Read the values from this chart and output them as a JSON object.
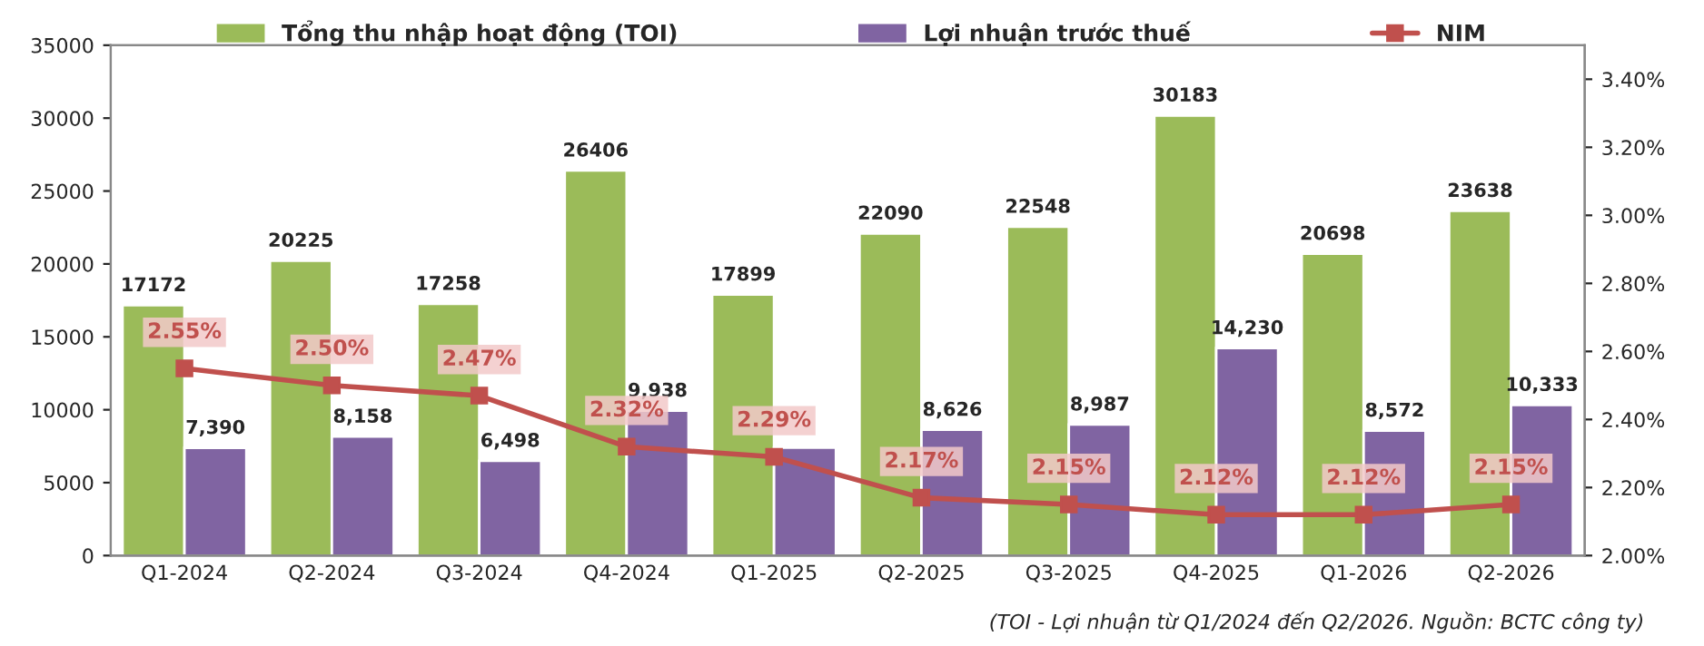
{
  "chart_data": {
    "type": "bar",
    "categories": [
      "Q1-2024",
      "Q2-2024",
      "Q3-2024",
      "Q4-2024",
      "Q1-2025",
      "Q2-2025",
      "Q3-2025",
      "Q4-2025",
      "Q1-2026",
      "Q2-2026"
    ],
    "series": [
      {
        "name": "Tổng thu nhập hoạt động (TOI)",
        "color": "#9bbb59",
        "values": [
          17172,
          20225,
          17258,
          26406,
          17899,
          22090,
          22548,
          30183,
          20698,
          23638
        ],
        "value_labels": [
          "17172",
          "20225",
          "17258",
          "26406",
          "17899",
          "22090",
          "22548",
          "30183",
          "20698",
          "23638"
        ]
      },
      {
        "name": "Lợi nhuận trước thuế",
        "color": "#8064a2",
        "values": [
          7390,
          8158,
          6498,
          9938,
          7400,
          8626,
          8987,
          14230,
          8572,
          10333
        ],
        "value_labels": [
          "7,390",
          "8,158",
          "6,498",
          "9,938",
          null,
          "8,626",
          "8,987",
          "14,230",
          "8,572",
          "10,333"
        ]
      },
      {
        "name": "NIM",
        "type": "line",
        "axis": "y2",
        "color": "#c0504d",
        "marker": "square",
        "values": [
          2.55,
          2.5,
          2.47,
          2.32,
          2.29,
          2.17,
          2.15,
          2.12,
          2.12,
          2.15
        ],
        "value_labels": [
          "2.55%",
          "2.50%",
          "2.47%",
          "2.32%",
          "2.29%",
          "2.17%",
          "2.15%",
          "2.12%",
          "2.12%",
          "2.15%"
        ]
      }
    ],
    "ylim": [
      0,
      35000
    ],
    "yticks": [
      0,
      5000,
      10000,
      15000,
      20000,
      25000,
      30000,
      35000
    ],
    "y2lim": [
      2.0,
      3.5
    ],
    "y2ticks": [
      {
        "value": 2.0,
        "label": "2.00%"
      },
      {
        "value": 2.2,
        "label": "2.20%"
      },
      {
        "value": 2.4,
        "label": "2.40%"
      },
      {
        "value": 2.6,
        "label": "2.60%"
      },
      {
        "value": 2.8,
        "label": "2.80%"
      },
      {
        "value": 3.0,
        "label": "3.00%"
      },
      {
        "value": 3.2,
        "label": "3.20%"
      },
      {
        "value": 3.4,
        "label": "3.40%"
      }
    ],
    "legend": "top",
    "grid": false,
    "annotations": [
      "(TOI - Lợi nhuận từ Q1/2024 đến Q2/2026. Nguồn: BCTC công ty)"
    ]
  }
}
